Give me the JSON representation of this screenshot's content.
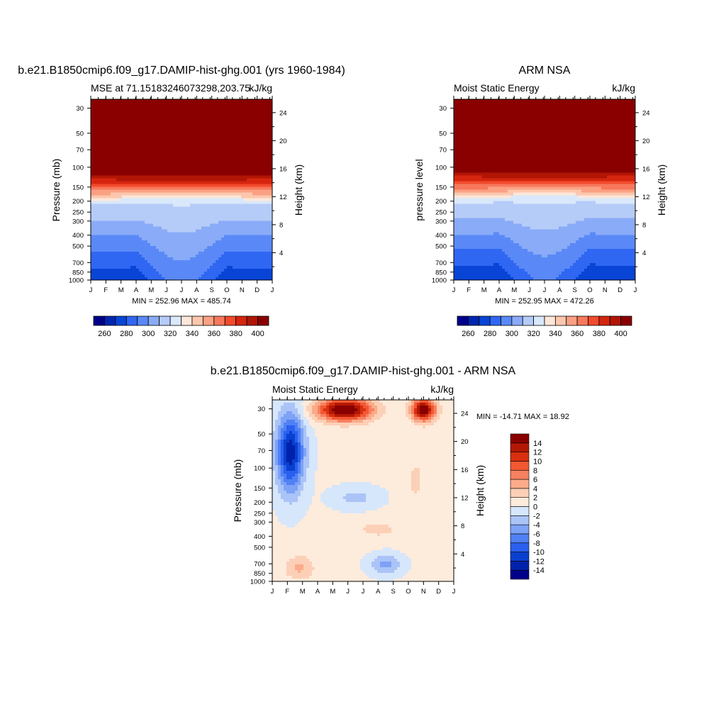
{
  "figure": {
    "type": "contour-panels"
  },
  "panels": [
    {
      "title": "b.e21.B1850cmip6.f09_g17.DAMIP-hist-ghg.001 (yrs 1960-1984)",
      "left_label": "MSE at 71.15183246073298,203.75",
      "right_label": "kJ/kg",
      "y_left_label": "Pressure (mb)",
      "y_right_label": "Height (km)",
      "stats": "MIN = 252.96 MAX = 485.74"
    },
    {
      "title": "ARM NSA",
      "left_label": "Moist Static Energy",
      "right_label": "kJ/kg",
      "y_left_label": "pressure level",
      "y_right_label": "Height (km)",
      "stats": "MIN = 252.95 MAX = 472.26"
    },
    {
      "title": "b.e21.B1850cmip6.f09_g17.DAMIP-hist-ghg.001 - ARM NSA",
      "left_label": "Moist Static Energy",
      "right_label": "kJ/kg",
      "y_left_label": "Pressure (mb)",
      "y_right_label": "Height (km)",
      "stats": "MIN = -14.71 MAX =  18.92"
    }
  ],
  "chart_data": [
    {
      "type": "heatmap",
      "subtype": "filled-contour",
      "title": "b.e21.B1850cmip6.f09_g17.DAMIP-hist-ghg.001 (yrs 1960-1984)",
      "variable": "Moist Static Energy",
      "units": "kJ/kg",
      "x_ticks": [
        "J",
        "F",
        "M",
        "A",
        "M",
        "J",
        "J",
        "A",
        "S",
        "O",
        "N",
        "D",
        "J"
      ],
      "y_ticks": [
        30,
        50,
        70,
        100,
        150,
        200,
        250,
        300,
        400,
        500,
        700,
        850,
        1000
      ],
      "y_range": [
        1000,
        25
      ],
      "y2_ticks": [
        4,
        8,
        12,
        16,
        20,
        24
      ],
      "levels": [
        260,
        270,
        280,
        290,
        300,
        310,
        320,
        330,
        340,
        350,
        360,
        370,
        380,
        390,
        400
      ],
      "colorbar_labels": [
        "260",
        "280",
        "300",
        "320",
        "340",
        "360",
        "380",
        "400"
      ],
      "colors": [
        "#00008a",
        "#0026b0",
        "#0845d6",
        "#2f67f2",
        "#5a89f7",
        "#8aabf7",
        "#b6ccf8",
        "#d9e8fb",
        "#fde7d9",
        "#fcc7ad",
        "#fba183",
        "#f7785c",
        "#f24a2c",
        "#d5250f",
        "#b11505",
        "#8a0000"
      ],
      "min": 252.96,
      "max": 485.74
    },
    {
      "type": "heatmap",
      "subtype": "filled-contour",
      "title": "ARM NSA",
      "variable": "Moist Static Energy",
      "units": "kJ/kg",
      "x_ticks": [
        "J",
        "F",
        "M",
        "A",
        "M",
        "J",
        "J",
        "A",
        "S",
        "O",
        "N",
        "D",
        "J"
      ],
      "y_ticks": [
        30,
        50,
        70,
        100,
        150,
        200,
        250,
        300,
        400,
        500,
        700,
        850,
        1000
      ],
      "y_range": [
        1000,
        25
      ],
      "y2_ticks": [
        4,
        8,
        12,
        16,
        20,
        24
      ],
      "levels": [
        260,
        270,
        280,
        290,
        300,
        310,
        320,
        330,
        340,
        350,
        360,
        370,
        380,
        390,
        400
      ],
      "colorbar_labels": [
        "260",
        "280",
        "300",
        "320",
        "340",
        "360",
        "380",
        "400"
      ],
      "colors": [
        "#00008a",
        "#0026b0",
        "#0845d6",
        "#2f67f2",
        "#5a89f7",
        "#8aabf7",
        "#b6ccf8",
        "#d9e8fb",
        "#fde7d9",
        "#fcc7ad",
        "#fba183",
        "#f7785c",
        "#f24a2c",
        "#d5250f",
        "#b11505",
        "#8a0000"
      ],
      "min": 252.95,
      "max": 472.26
    },
    {
      "type": "heatmap",
      "subtype": "filled-contour",
      "title": "b.e21.B1850cmip6.f09_g17.DAMIP-hist-ghg.001 - ARM NSA",
      "variable": "Moist Static Energy",
      "units": "kJ/kg",
      "x_ticks": [
        "J",
        "F",
        "M",
        "A",
        "M",
        "J",
        "J",
        "A",
        "S",
        "O",
        "N",
        "D",
        "J"
      ],
      "y_ticks": [
        30,
        50,
        70,
        100,
        150,
        200,
        250,
        300,
        400,
        500,
        700,
        850,
        1000
      ],
      "y_range": [
        1000,
        25
      ],
      "y2_ticks": [
        4,
        8,
        12,
        16,
        20,
        24
      ],
      "levels": [
        -14,
        -12,
        -10,
        -8,
        -6,
        -4,
        -2,
        0,
        2,
        4,
        6,
        8,
        10,
        12,
        14
      ],
      "colorbar_labels": [
        "-14",
        "-12",
        "-10",
        "-8",
        "-6",
        "-4",
        "-2",
        "0",
        "2",
        "4",
        "6",
        "8",
        "10",
        "12",
        "14"
      ],
      "colors": [
        "#00008a",
        "#0022aa",
        "#0a40d0",
        "#2a60ee",
        "#5080f4",
        "#7da2f6",
        "#abc4f7",
        "#d6e6fb",
        "#fdebdc",
        "#fcd0b6",
        "#fbab8a",
        "#f78060",
        "#f25832",
        "#d8300f",
        "#b31806",
        "#8a0000"
      ],
      "min": -14.71,
      "max": 18.92
    }
  ]
}
